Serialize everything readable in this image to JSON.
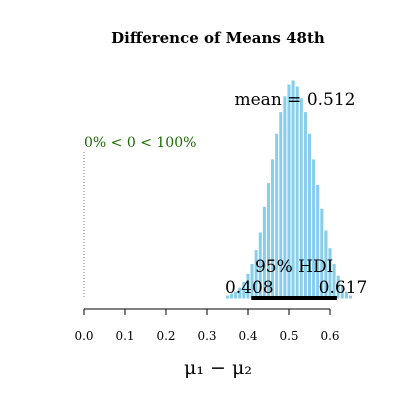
{
  "chart_data": {
    "type": "histogram",
    "title": "Difference of Means 48th",
    "xlabel": "μ₁ − μ₂",
    "ylabel": "",
    "xlim": [
      0.0,
      0.66
    ],
    "xticks": [
      "0.0",
      "0.1",
      "0.2",
      "0.3",
      "0.4",
      "0.5",
      "0.6"
    ],
    "bar_color": "#87ceeb",
    "bins": [
      {
        "x": 0.35,
        "y": 4
      },
      {
        "x": 0.36,
        "y": 6
      },
      {
        "x": 0.37,
        "y": 8
      },
      {
        "x": 0.38,
        "y": 12
      },
      {
        "x": 0.39,
        "y": 18
      },
      {
        "x": 0.4,
        "y": 26
      },
      {
        "x": 0.41,
        "y": 36
      },
      {
        "x": 0.42,
        "y": 50
      },
      {
        "x": 0.43,
        "y": 68
      },
      {
        "x": 0.44,
        "y": 94
      },
      {
        "x": 0.45,
        "y": 118
      },
      {
        "x": 0.46,
        "y": 142
      },
      {
        "x": 0.47,
        "y": 168
      },
      {
        "x": 0.48,
        "y": 190
      },
      {
        "x": 0.49,
        "y": 206
      },
      {
        "x": 0.5,
        "y": 218
      },
      {
        "x": 0.51,
        "y": 222
      },
      {
        "x": 0.52,
        "y": 216
      },
      {
        "x": 0.53,
        "y": 204
      },
      {
        "x": 0.54,
        "y": 190
      },
      {
        "x": 0.55,
        "y": 168
      },
      {
        "x": 0.56,
        "y": 142
      },
      {
        "x": 0.57,
        "y": 116
      },
      {
        "x": 0.58,
        "y": 92
      },
      {
        "x": 0.59,
        "y": 70
      },
      {
        "x": 0.6,
        "y": 52
      },
      {
        "x": 0.61,
        "y": 36
      },
      {
        "x": 0.62,
        "y": 24
      },
      {
        "x": 0.63,
        "y": 14
      },
      {
        "x": 0.64,
        "y": 8
      },
      {
        "x": 0.65,
        "y": 4
      }
    ],
    "mean_label": "mean = 0.512",
    "comparison_value": 0.0,
    "comparison_label": "0% < 0 < 100%",
    "comparison_color": "#1a6b00",
    "hdi": {
      "label": "95% HDI",
      "low": 0.408,
      "high": 0.617,
      "low_label": "0.408",
      "high_label": "0.617"
    }
  }
}
